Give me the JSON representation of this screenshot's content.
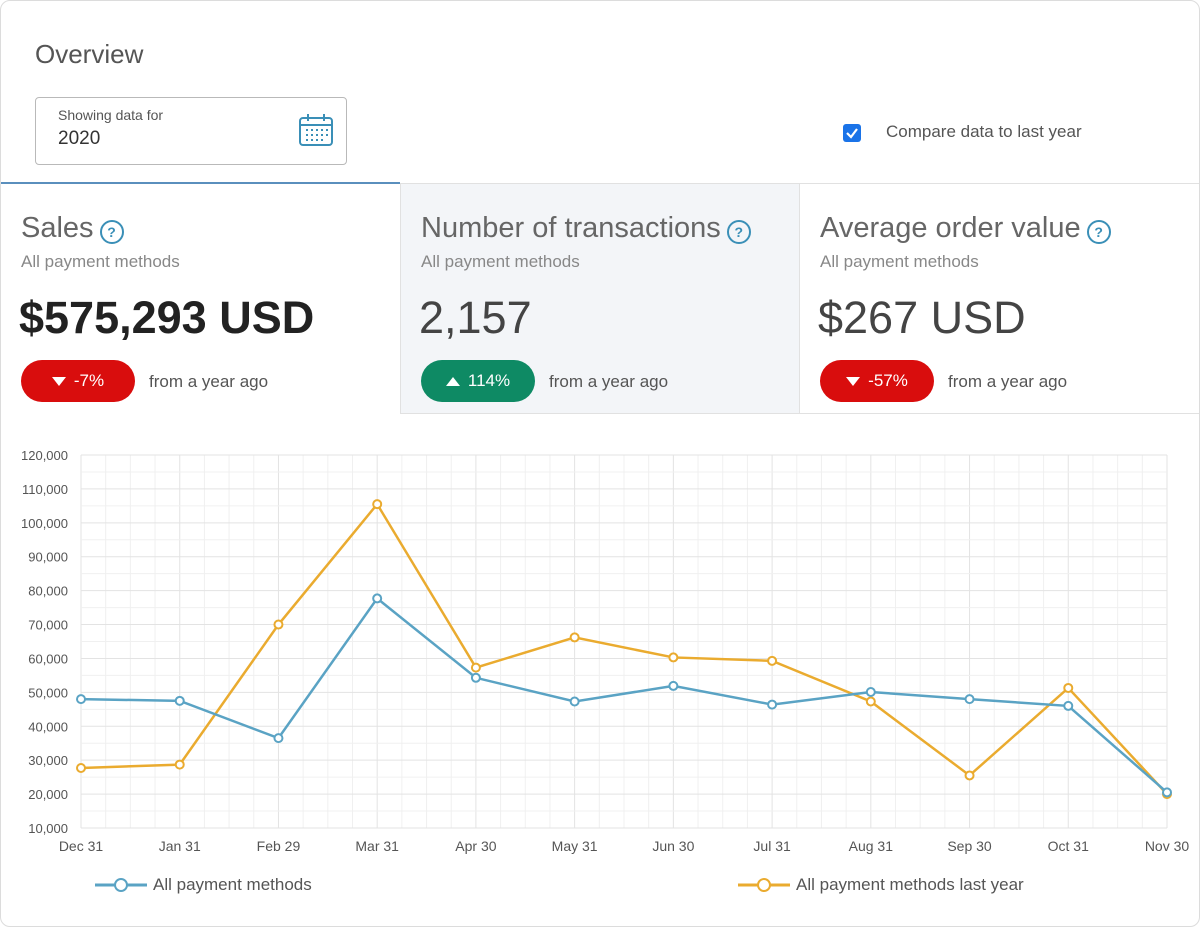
{
  "header": {
    "title": "Overview"
  },
  "date_picker": {
    "label": "Showing data for",
    "value": "2020",
    "icon": "calendar-icon"
  },
  "compare": {
    "label": "Compare data to last year",
    "checked": true
  },
  "metrics": [
    {
      "title": "Sales",
      "subtitle": "All payment methods",
      "value": "$575,293 USD",
      "change": "-7%",
      "direction": "down",
      "change_text": "from a year ago"
    },
    {
      "title": "Number of transactions",
      "subtitle": "All payment methods",
      "value": "2,157",
      "change": "114%",
      "direction": "up",
      "change_text": "from a year ago"
    },
    {
      "title": "Average order value",
      "subtitle": "All payment methods",
      "value": "$267 USD",
      "change": "-57%",
      "direction": "down",
      "change_text": "from a year ago"
    }
  ],
  "colors": {
    "current": "#5aa3c4",
    "last_year": "#eaab2f",
    "down": "#d90d0d",
    "up": "#0e8a64",
    "accent": "#5a8fbd"
  },
  "chart_data": {
    "type": "line",
    "categories": [
      "Dec 31",
      "Jan 31",
      "Feb 29",
      "Mar 31",
      "Apr 30",
      "May 31",
      "Jun 30",
      "Jul 31",
      "Aug 31",
      "Sep 30",
      "Oct 31",
      "Nov 30"
    ],
    "series": [
      {
        "name": "All payment methods",
        "color": "#5aa3c4",
        "values": [
          48000,
          47500,
          36500,
          77700,
          54300,
          47300,
          51900,
          46400,
          50100,
          48000,
          46000,
          20500
        ]
      },
      {
        "name": "All payment methods last year",
        "color": "#eaab2f",
        "values": [
          27700,
          28700,
          70000,
          105500,
          57300,
          66200,
          60300,
          59300,
          47300,
          25500,
          51300,
          20000
        ]
      }
    ],
    "yticks": [
      "120,000",
      "110,000",
      "100,000",
      "90,000",
      "80,000",
      "70,000",
      "60,000",
      "50,000",
      "40,000",
      "30,000",
      "20,000",
      "10,000"
    ],
    "ylim": [
      10000,
      120000
    ],
    "grid": true,
    "legend_position": "bottom"
  }
}
